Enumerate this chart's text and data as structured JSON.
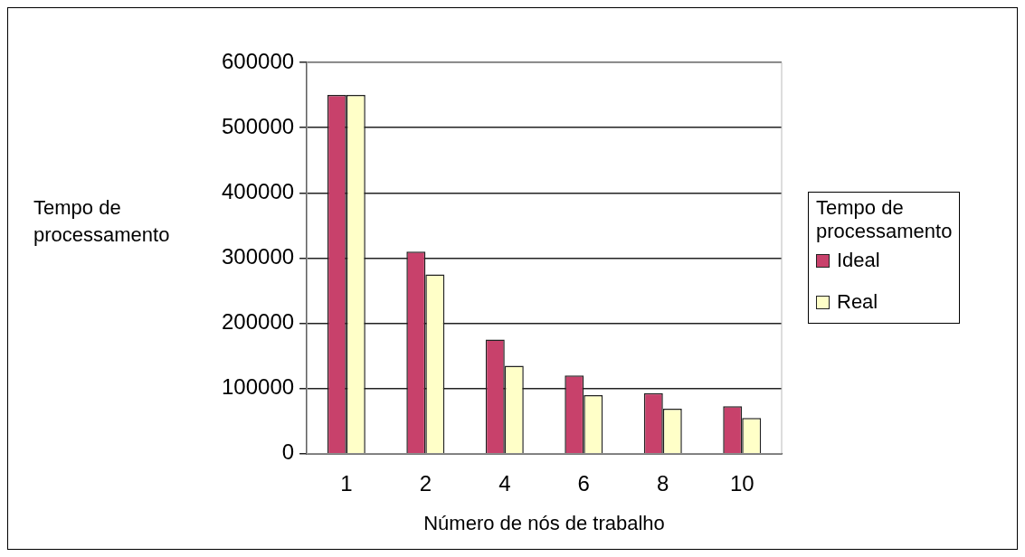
{
  "chart_data": {
    "type": "bar",
    "categories": [
      "1",
      "2",
      "4",
      "6",
      "8",
      "10"
    ],
    "series": [
      {
        "name": "Ideal",
        "color": "#c8416b",
        "values": [
          550000,
          310000,
          175000,
          120000,
          93000,
          73000
        ]
      },
      {
        "name": "Real",
        "color": "#ffffc8",
        "values": [
          550000,
          275000,
          135000,
          90000,
          69000,
          55000
        ]
      }
    ],
    "xlabel": "Número de nós de trabalho",
    "ylabel": "Tempo de processamento",
    "legend_title": "Tempo de processamento",
    "ylim": [
      0,
      600000
    ],
    "yticks": [
      0,
      100000,
      200000,
      300000,
      400000,
      500000,
      600000
    ],
    "grid": "y",
    "legend": "right"
  }
}
